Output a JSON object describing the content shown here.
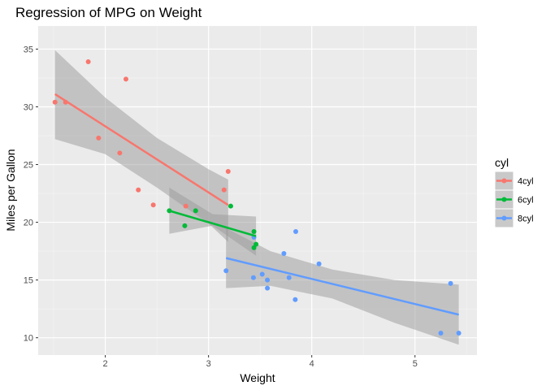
{
  "chart_data": {
    "type": "scatter",
    "title": "Regression of MPG on Weight",
    "xlabel": "Weight",
    "ylabel": "Miles per Gallon",
    "xlim": [
      1.35,
      5.6
    ],
    "ylim": [
      8.5,
      37
    ],
    "x_ticks": [
      2,
      3,
      4,
      5
    ],
    "y_ticks": [
      10,
      15,
      20,
      25,
      30,
      35
    ],
    "grid": true,
    "legend_title": "cyl",
    "legend_position": "right",
    "series": [
      {
        "name": "4cyl",
        "color": "#F8766D",
        "points": [
          [
            2.32,
            22.8
          ],
          [
            3.19,
            24.4
          ],
          [
            3.15,
            22.8
          ],
          [
            2.2,
            32.4
          ],
          [
            1.615,
            30.4
          ],
          [
            1.835,
            33.9
          ],
          [
            2.465,
            21.5
          ],
          [
            1.935,
            27.3
          ],
          [
            2.14,
            26.0
          ],
          [
            1.513,
            30.4
          ],
          [
            2.78,
            21.4
          ]
        ],
        "fit": {
          "x": [
            1.513,
            3.19
          ],
          "y": [
            31.1,
            21.5
          ]
        },
        "band": {
          "x": [
            1.513,
            2.0,
            2.5,
            3.0,
            3.19
          ],
          "upper": [
            34.9,
            30.8,
            27.3,
            24.6,
            23.7
          ],
          "lower": [
            27.2,
            25.9,
            23.0,
            19.9,
            18.3
          ]
        }
      },
      {
        "name": "6cyl",
        "color": "#00BA38",
        "points": [
          [
            2.62,
            21.0
          ],
          [
            2.875,
            21.0
          ],
          [
            3.215,
            21.4
          ],
          [
            3.46,
            18.1
          ],
          [
            3.44,
            19.2
          ],
          [
            3.44,
            17.8
          ],
          [
            2.77,
            19.7
          ]
        ],
        "fit": {
          "x": [
            2.62,
            3.46
          ],
          "y": [
            21.0,
            18.8
          ]
        },
        "band": {
          "x": [
            2.62,
            3.04,
            3.46
          ],
          "upper": [
            23.0,
            20.7,
            20.5
          ],
          "lower": [
            19.0,
            19.7,
            17.1
          ]
        }
      },
      {
        "name": "8cyl",
        "color": "#619CFF",
        "points": [
          [
            3.44,
            18.7
          ],
          [
            3.57,
            14.3
          ],
          [
            4.07,
            16.4
          ],
          [
            3.73,
            17.3
          ],
          [
            3.78,
            15.2
          ],
          [
            5.25,
            10.4
          ],
          [
            5.424,
            10.4
          ],
          [
            5.345,
            14.7
          ],
          [
            3.52,
            15.5
          ],
          [
            3.435,
            15.2
          ],
          [
            3.84,
            13.3
          ],
          [
            3.845,
            19.2
          ],
          [
            3.17,
            15.8
          ],
          [
            3.57,
            15.0
          ]
        ],
        "fit": {
          "x": [
            3.17,
            5.424
          ],
          "y": [
            16.9,
            12.0
          ]
        },
        "band": {
          "x": [
            3.17,
            3.6,
            4.2,
            4.8,
            5.424
          ],
          "upper": [
            19.5,
            17.5,
            15.9,
            15.0,
            14.6
          ],
          "lower": [
            14.3,
            14.5,
            13.4,
            11.3,
            9.4
          ]
        }
      }
    ]
  }
}
